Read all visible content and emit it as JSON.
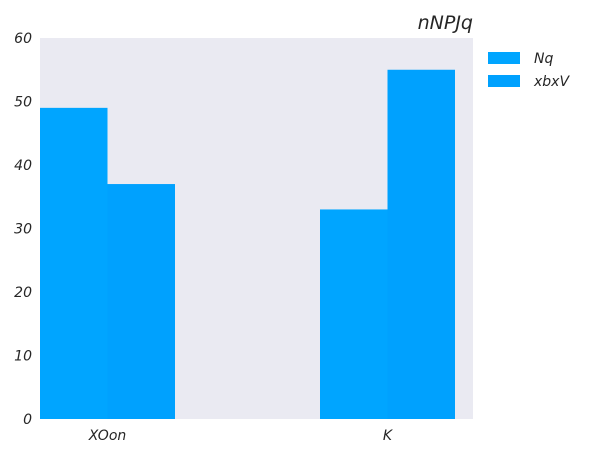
{
  "chart_data": {
    "type": "bar",
    "title": "nNPJq",
    "xlabel": "",
    "ylabel": "",
    "categories": [
      "XOon",
      "K"
    ],
    "series": [
      {
        "name": "Nq",
        "values": [
          49,
          33
        ],
        "color": "#00a5ff"
      },
      {
        "name": "xbxV",
        "values": [
          37,
          55
        ],
        "color": "#00a1fe"
      }
    ],
    "ylim": [
      0,
      60
    ],
    "yticks": [
      0,
      10,
      20,
      30,
      40,
      50,
      60
    ],
    "grid": false,
    "legend_position": "outside-right-top",
    "plot_background": "#eaeaf2"
  }
}
